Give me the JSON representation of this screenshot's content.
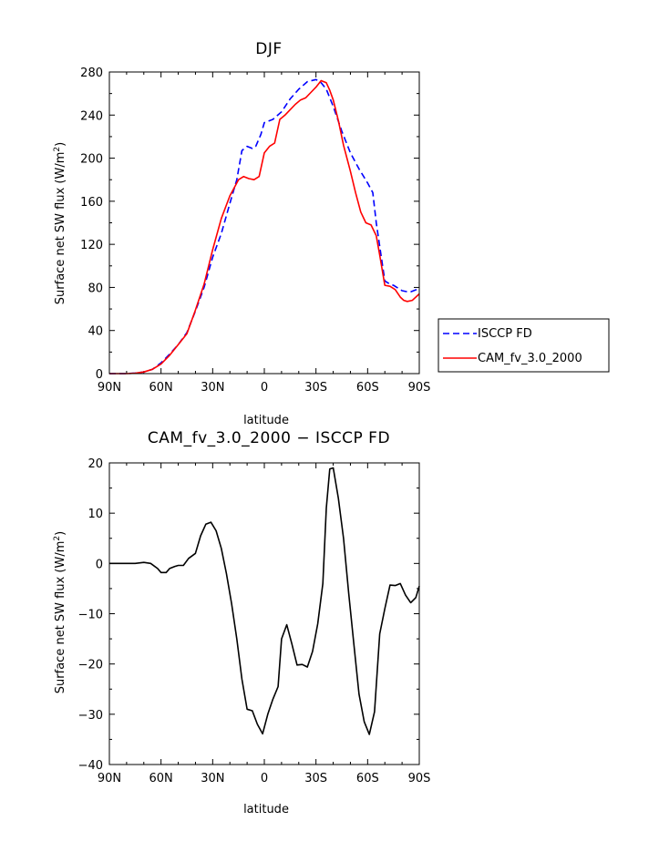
{
  "chart_data": [
    {
      "type": "line",
      "title": "DJF",
      "xlabel": "latitude",
      "ylabel_main": "Surface net SW flux (W/m",
      "ylabel_sup": "2",
      "ylabel_close": ")",
      "x_ticks": [
        "90N",
        "60N",
        "30N",
        "0",
        "30S",
        "60S",
        "90S"
      ],
      "x_tick_values": [
        -90,
        -60,
        -30,
        0,
        30,
        60,
        90
      ],
      "y_ticks": [
        "0",
        "40",
        "80",
        "120",
        "160",
        "200",
        "240",
        "280"
      ],
      "y_tick_values": [
        0,
        40,
        80,
        120,
        160,
        200,
        240,
        280
      ],
      "xlim": [
        -90,
        90
      ],
      "ylim": [
        0,
        280
      ],
      "legend_position": "right",
      "series": [
        {
          "name": "ISCCP FD",
          "color": "#0000ff",
          "dash": "dashed",
          "x": [
            -90,
            -85,
            -80,
            -75,
            -70,
            -65,
            -60,
            -55,
            -50,
            -45,
            -40,
            -35,
            -30,
            -25,
            -20,
            -16,
            -13,
            -10,
            -7,
            -5,
            -2,
            0,
            5,
            10,
            15,
            20,
            25,
            30,
            33,
            36,
            40,
            45,
            50,
            55,
            60,
            63,
            65,
            70,
            73,
            75,
            80,
            83,
            85,
            90
          ],
          "y": [
            0,
            0,
            0,
            0.5,
            1.5,
            4,
            10,
            18,
            27,
            38,
            58,
            80,
            108,
            130,
            158,
            180,
            207,
            211,
            209,
            211,
            222,
            233,
            236,
            243,
            255,
            264,
            271,
            273,
            270,
            264,
            248,
            225,
            205,
            190,
            177,
            168,
            140,
            86,
            83,
            82,
            77,
            76,
            76,
            79
          ]
        },
        {
          "name": "CAM_fv_3.0_2000",
          "color": "#ff0000",
          "dash": "solid",
          "x": [
            -90,
            -85,
            -80,
            -75,
            -70,
            -65,
            -60,
            -55,
            -50,
            -45,
            -40,
            -35,
            -30,
            -25,
            -20,
            -15,
            -12,
            -9,
            -6,
            -3,
            0,
            3,
            6,
            9,
            12,
            15,
            18,
            21,
            24,
            27,
            30,
            33,
            36,
            38,
            40,
            43,
            46,
            50,
            53,
            56,
            59,
            62,
            65,
            67,
            70,
            73,
            76,
            79,
            81,
            83,
            86,
            90
          ],
          "y": [
            0,
            0,
            0,
            0.3,
            1.5,
            4,
            9,
            17,
            27,
            37,
            59,
            83,
            115,
            144,
            165,
            180,
            183,
            181,
            180,
            183,
            205,
            211,
            214,
            236,
            240,
            245,
            250,
            254,
            256,
            261,
            266,
            272,
            270,
            263,
            254,
            235,
            212,
            188,
            168,
            150,
            140,
            138,
            128,
            110,
            82,
            81,
            78,
            71,
            68,
            67,
            68,
            74
          ]
        }
      ]
    },
    {
      "type": "line",
      "title": "CAM_fv_3.0_2000 − ISCCP FD",
      "xlabel": "latitude",
      "ylabel_main": "Surface net SW flux (W/m",
      "ylabel_sup": "2",
      "ylabel_close": ")",
      "x_ticks": [
        "90N",
        "60N",
        "30N",
        "0",
        "30S",
        "60S",
        "90S"
      ],
      "x_tick_values": [
        -90,
        -60,
        -30,
        0,
        30,
        60,
        90
      ],
      "y_ticks": [
        "−40",
        "−30",
        "−20",
        "−10",
        "0",
        "10",
        "20"
      ],
      "y_tick_values": [
        -40,
        -30,
        -20,
        -10,
        0,
        10,
        20
      ],
      "xlim": [
        -90,
        90
      ],
      "ylim": [
        -40,
        20
      ],
      "series": [
        {
          "color": "#000000",
          "x": [
            -90,
            -85,
            -80,
            -75,
            -70,
            -66,
            -62,
            -60,
            -57,
            -55,
            -52,
            -50,
            -47,
            -44,
            -40,
            -37,
            -34,
            -31,
            -28,
            -25,
            -22,
            -19,
            -16,
            -13,
            -10,
            -7,
            -4,
            -1,
            2,
            5,
            8,
            10,
            13,
            16,
            19,
            22,
            25,
            28,
            31,
            34,
            36,
            38,
            40,
            43,
            46,
            49,
            52,
            55,
            58,
            61,
            64,
            67,
            70,
            73,
            76,
            79,
            82,
            85,
            88,
            90
          ],
          "y": [
            0,
            0,
            0,
            0,
            0.2,
            0,
            -1,
            -1.8,
            -1.8,
            -1,
            -0.6,
            -0.4,
            -0.4,
            1,
            2,
            5.5,
            7.8,
            8.2,
            6.5,
            3,
            -2,
            -8,
            -15,
            -23,
            -29,
            -29.3,
            -32,
            -33.9,
            -30,
            -27,
            -24.5,
            -15,
            -12.2,
            -16,
            -20.2,
            -20.1,
            -20.6,
            -17.5,
            -12,
            -4,
            11,
            18.8,
            19,
            13,
            5,
            -6,
            -16,
            -26,
            -31.5,
            -34,
            -29.5,
            -14,
            -9,
            -4.3,
            -4.4,
            -4,
            -6.3,
            -7.8,
            -6.8,
            -4.5
          ]
        }
      ]
    }
  ]
}
